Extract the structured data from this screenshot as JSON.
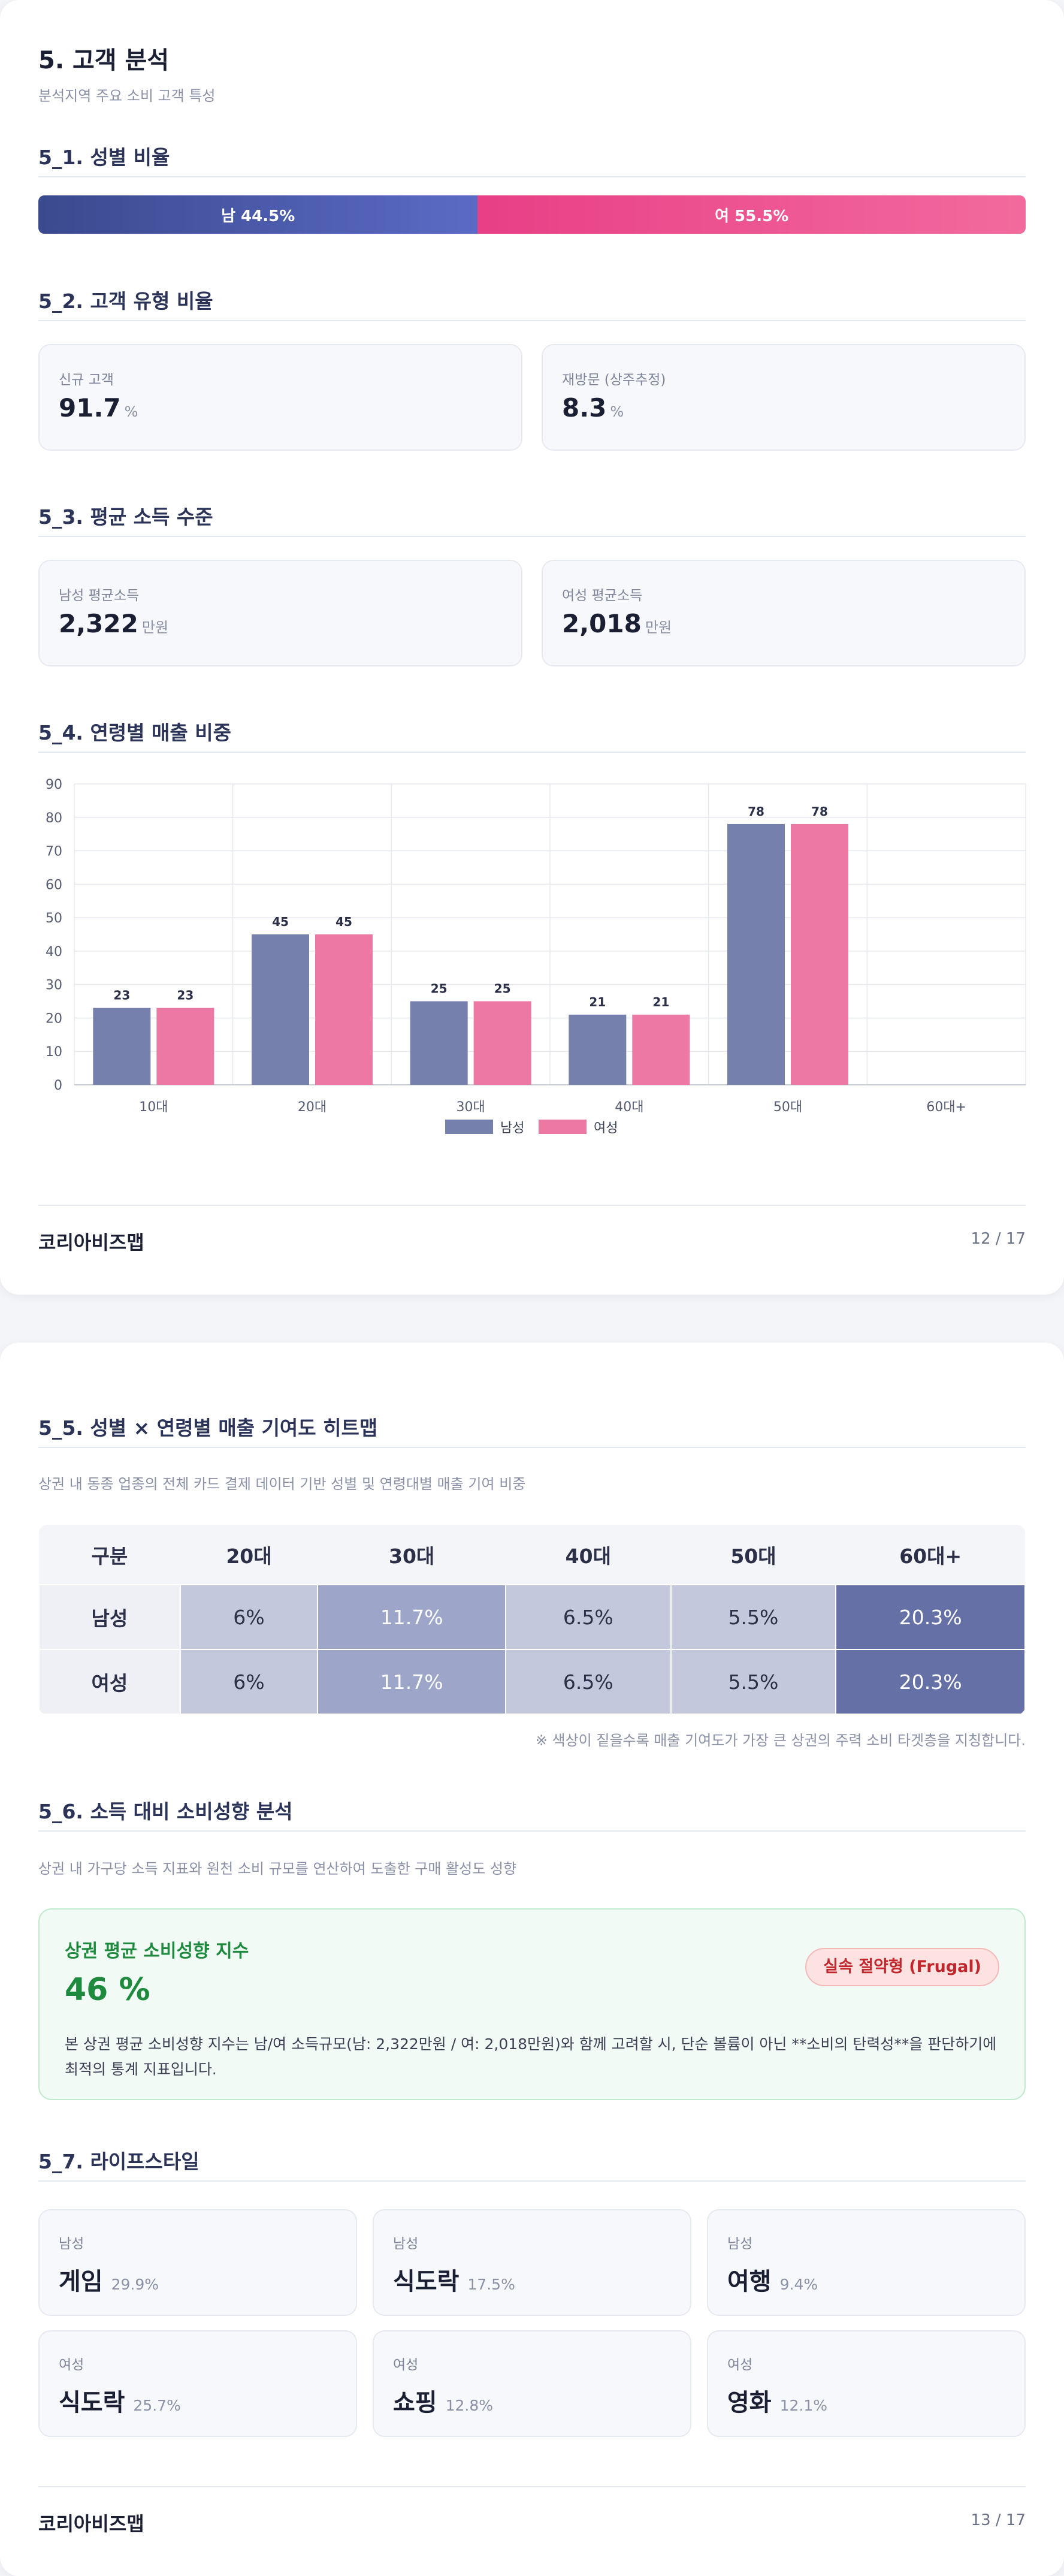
{
  "section5": {
    "title": "5. 고객 분석",
    "subtitle": "분석지역 주요 소비 고객 특성"
  },
  "gender": {
    "title": "5_1. 성별 비율",
    "male_label": "남 44.5%",
    "female_label": "여 55.5%",
    "male_ratio": 44.5,
    "female_ratio": 55.5
  },
  "customer_type": {
    "title": "5_2. 고객 유형 비율",
    "items": [
      {
        "label": "신규 고객",
        "value": "91.7",
        "unit": "%"
      },
      {
        "label": "재방문 (상주추정)",
        "value": "8.3",
        "unit": "%"
      }
    ]
  },
  "income": {
    "title": "5_3. 평균 소득 수준",
    "items": [
      {
        "label": "남성 평균소득",
        "value": "2,322",
        "unit": "만원"
      },
      {
        "label": "여성 평균소득",
        "value": "2,018",
        "unit": "만원"
      }
    ]
  },
  "age_sales": {
    "title": "5_4. 연령별 매출 비중"
  },
  "chart_data": {
    "type": "bar",
    "categories": [
      "10대",
      "20대",
      "30대",
      "40대",
      "50대",
      "60대+"
    ],
    "series": [
      {
        "name": "남성",
        "values": [
          23,
          45,
          25,
          21,
          78,
          null
        ],
        "color": "#7680ad"
      },
      {
        "name": "여성",
        "values": [
          23,
          45,
          25,
          21,
          78,
          null
        ],
        "color": "#ee78a4"
      }
    ],
    "yticks": [
      "0",
      "10",
      "20",
      "30",
      "40",
      "50",
      "60",
      "70",
      "80",
      "90"
    ],
    "ylim": [
      0,
      90
    ],
    "grid": true,
    "legend": "bottom-center"
  },
  "footer1": {
    "brand": "코리아비즈맵",
    "page": "12 / 17"
  },
  "heatmap": {
    "title": "5_5. 성별 × 연령별 매출 기여도 히트맵",
    "subtitle": "상권 내 동종 업종의 전체 카드 결제 데이터 기반 성별 및 연령대별 매출 기여 비중",
    "headers": [
      "구분",
      "20대",
      "30대",
      "40대",
      "50대",
      "60대+"
    ],
    "rows": [
      {
        "label": "남성",
        "cells": [
          "6%",
          "11.7%",
          "6.5%",
          "5.5%",
          "20.3%"
        ]
      },
      {
        "label": "여성",
        "cells": [
          "6%",
          "11.7%",
          "6.5%",
          "5.5%",
          "20.3%"
        ]
      }
    ],
    "cell_colors": [
      "#c4c8dc",
      "#9da5c8",
      "#c4c8dc",
      "#c4c8dc",
      "#6570a6"
    ],
    "cell_text_colors": [
      "#2b3048",
      "#ffffff",
      "#2b3048",
      "#2b3048",
      "#ffffff"
    ],
    "note": "※ 색상이 짙을수록 매출 기여도가 가장 큰 상권의 주력 소비 타겟층을 지칭합니다."
  },
  "spending": {
    "title": "5_6. 소득 대비 소비성향 분석",
    "subtitle": "상권 내 가구당 소득 지표와 원천 소비 규모를 연산하여 도출한 구매 활성도 성향",
    "box_title": "상권 평균 소비성향 지수",
    "value": "46 %",
    "badge": "실속 절약형 (Frugal)",
    "description": "본 상권 평균 소비성향 지수는 남/여 소득규모(남: 2,322만원 / 여: 2,018만원)와 함께 고려할 시, 단순 볼륨이 아닌 **소비의 탄력성**을 판단하기에 최적의 통계 지표입니다."
  },
  "lifestyle": {
    "title": "5_7. 라이프스타일",
    "items": [
      {
        "gender": "남성",
        "name": "게임",
        "pct": "29.9%"
      },
      {
        "gender": "남성",
        "name": "식도락",
        "pct": "17.5%"
      },
      {
        "gender": "남성",
        "name": "여행",
        "pct": "9.4%"
      },
      {
        "gender": "여성",
        "name": "식도락",
        "pct": "25.7%"
      },
      {
        "gender": "여성",
        "name": "쇼핑",
        "pct": "12.8%"
      },
      {
        "gender": "여성",
        "name": "영화",
        "pct": "12.1%"
      }
    ]
  },
  "footer2": {
    "brand": "코리아비즈맵",
    "page": "13 / 17"
  }
}
